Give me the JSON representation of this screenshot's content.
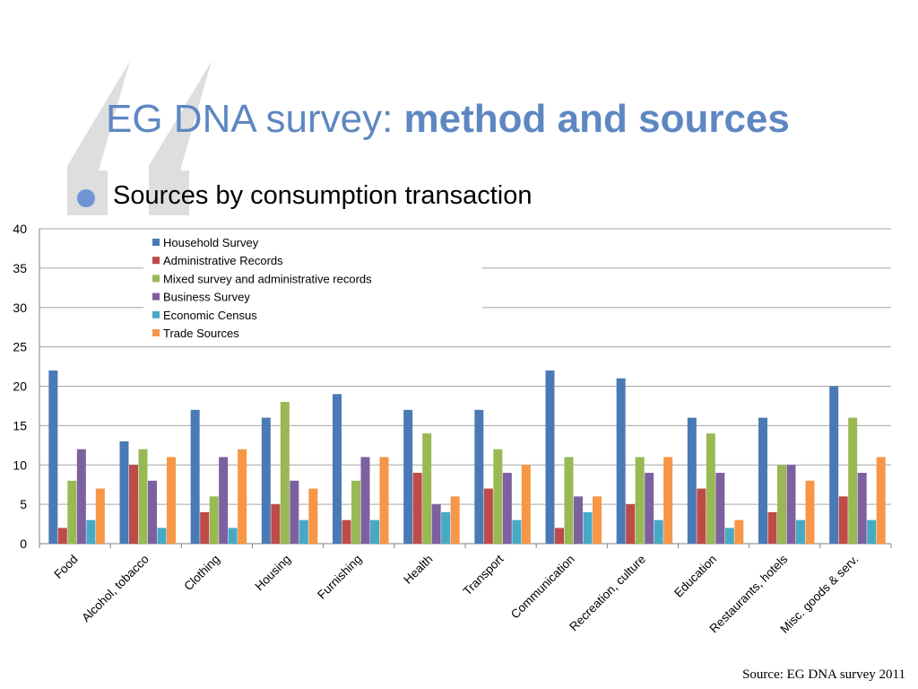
{
  "title": {
    "plain": "EG DNA survey: ",
    "bold": "method and sources"
  },
  "bullet": "Sources by consumption transaction",
  "source": "Source: EG DNA survey 2011",
  "chart_data": {
    "type": "bar",
    "ylim": [
      0,
      40
    ],
    "yticks": [
      0,
      5,
      10,
      15,
      20,
      25,
      30,
      35,
      40
    ],
    "grid": true,
    "legend_position": "top-left",
    "categories": [
      "Food",
      "Alcohol, tobacco",
      "Clothing",
      "Housing",
      "Furnishing",
      "Health",
      "Transport",
      "Communication",
      "Recreation, culture",
      "Education",
      "Restaurants, hotels",
      "Misc. goods & serv."
    ],
    "series": [
      {
        "name": "Household Survey",
        "color": "#4a7ab5",
        "values": [
          22,
          13,
          17,
          16,
          19,
          17,
          17,
          22,
          21,
          16,
          16,
          20
        ]
      },
      {
        "name": "Administrative Records",
        "color": "#be4b48",
        "values": [
          2,
          10,
          4,
          5,
          3,
          9,
          7,
          2,
          5,
          7,
          4,
          6
        ]
      },
      {
        "name": "Mixed survey and administrative records",
        "color": "#98b954",
        "values": [
          8,
          12,
          6,
          18,
          8,
          14,
          12,
          11,
          11,
          14,
          10,
          16
        ]
      },
      {
        "name": "Business Survey",
        "color": "#7d60a0",
        "values": [
          12,
          8,
          11,
          8,
          11,
          5,
          9,
          6,
          9,
          9,
          10,
          9
        ]
      },
      {
        "name": "Economic Census",
        "color": "#46aac5",
        "values": [
          3,
          2,
          2,
          3,
          3,
          4,
          3,
          4,
          3,
          2,
          3,
          3
        ]
      },
      {
        "name": "Trade Sources",
        "color": "#f79646",
        "values": [
          7,
          11,
          12,
          7,
          11,
          6,
          10,
          6,
          11,
          3,
          8,
          11
        ]
      }
    ]
  }
}
